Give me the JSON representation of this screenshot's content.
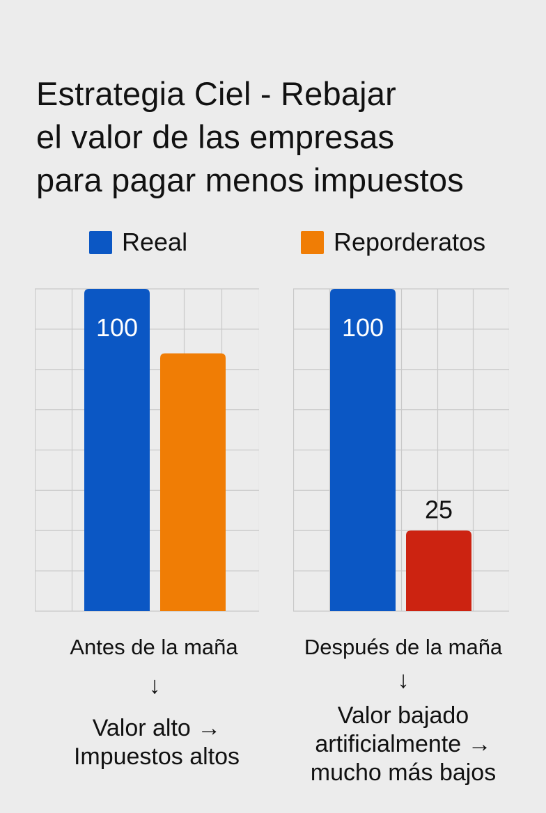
{
  "title": {
    "line1": "Estrategia Ciel - Rebajar",
    "line2": "el valor de las empresas",
    "line3": "para pagar menos impuestos"
  },
  "legend": [
    {
      "label": "Reeal",
      "color": "#0b57c4"
    },
    {
      "label": "Reporderatos",
      "color": "#f07d05"
    }
  ],
  "chart_data": [
    {
      "type": "bar",
      "title": "",
      "categories": [
        "Reeal",
        "Reporderatos"
      ],
      "values": [
        100,
        80
      ],
      "data_labels": [
        "100",
        ""
      ],
      "colors": [
        "#0b57c4",
        "#f07d05"
      ],
      "ylim": [
        0,
        100
      ],
      "grid": true,
      "caption": "Antes de la maña",
      "arrow": "↓",
      "note": [
        "Valor alto →",
        "Impuestos altos"
      ]
    },
    {
      "type": "bar",
      "title": "",
      "categories": [
        "Reeal",
        "Reporderatos"
      ],
      "values": [
        100,
        25
      ],
      "data_labels": [
        "100",
        "25"
      ],
      "colors": [
        "#0b57c4",
        "#cc2311"
      ],
      "ylim": [
        0,
        100
      ],
      "grid": true,
      "caption": "Después de la maña",
      "arrow": "↓",
      "note": [
        "Valor bajado",
        "artificialmente →",
        "mucho más bajos"
      ]
    }
  ]
}
